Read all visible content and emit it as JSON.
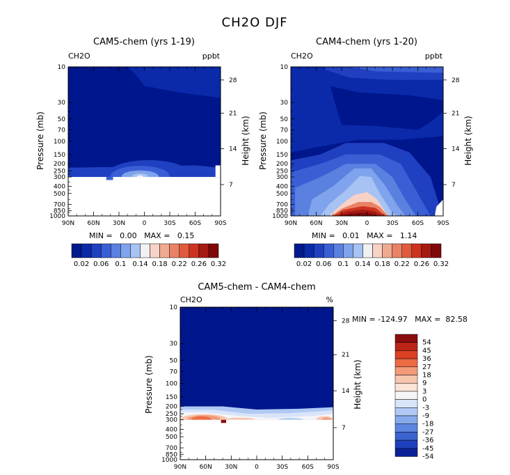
{
  "page_title": "CH2O DJF",
  "chart_data": [
    {
      "type": "heatmap",
      "title": "CAM5-chem (yrs 1-19)",
      "corner_left": "CH2O",
      "corner_right": "ppbt",
      "ylabel": "Pressure (mb)",
      "ylabel_right": "Height (km)",
      "x_ticks": [
        "90N",
        "60N",
        "30N",
        "0",
        "30S",
        "60S",
        "90S"
      ],
      "y_ticks": [
        "10",
        "30",
        "50",
        "70",
        "100",
        "150",
        "200",
        "250",
        "300",
        "400",
        "500",
        "700",
        "850",
        "1000"
      ],
      "y_tick_values": [
        10,
        30,
        50,
        70,
        100,
        150,
        200,
        250,
        300,
        400,
        500,
        700,
        850,
        1000
      ],
      "height_ticks": [
        "28",
        "21",
        "14",
        "7"
      ],
      "height_tick_pressures": [
        15,
        42,
        125,
        380
      ],
      "ylim": [
        10,
        1000
      ],
      "xlim": [
        90,
        -90
      ],
      "stats": "MIN =   0.00   MAX =   0.15",
      "min": 0.0,
      "max": 0.15,
      "colorbar_labels": [
        "0.02",
        "0.06",
        "0.1",
        "0.14",
        "0.18",
        "0.22",
        "0.26",
        "0.32"
      ],
      "colorbar_levels": [
        0.02,
        0.04,
        0.06,
        0.08,
        0.1,
        0.12,
        0.14,
        0.16,
        0.18,
        0.2,
        0.22,
        0.24,
        0.26,
        0.28,
        0.32
      ]
    },
    {
      "type": "heatmap",
      "title": "CAM4-chem (yrs 1-20)",
      "corner_left": "CH2O",
      "corner_right": "ppbt",
      "ylabel": "Pressure (mb)",
      "ylabel_right": "Height (km)",
      "x_ticks": [
        "90N",
        "60N",
        "30N",
        "0",
        "30S",
        "60S",
        "90S"
      ],
      "y_ticks": [
        "10",
        "30",
        "50",
        "70",
        "100",
        "150",
        "200",
        "250",
        "300",
        "400",
        "500",
        "700",
        "850",
        "1000"
      ],
      "y_tick_values": [
        10,
        30,
        50,
        70,
        100,
        150,
        200,
        250,
        300,
        400,
        500,
        700,
        850,
        1000
      ],
      "height_ticks": [
        "28",
        "21",
        "14",
        "7"
      ],
      "height_tick_pressures": [
        15,
        42,
        125,
        380
      ],
      "ylim": [
        10,
        1000
      ],
      "xlim": [
        90,
        -90
      ],
      "stats": "MIN =   0.01   MAX =   1.14",
      "min": 0.01,
      "max": 1.14,
      "colorbar_labels": [
        "0.02",
        "0.06",
        "0.1",
        "0.14",
        "0.18",
        "0.22",
        "0.26",
        "0.32"
      ],
      "colorbar_levels": [
        0.02,
        0.04,
        0.06,
        0.08,
        0.1,
        0.12,
        0.14,
        0.16,
        0.18,
        0.2,
        0.22,
        0.24,
        0.26,
        0.28,
        0.32
      ]
    },
    {
      "type": "heatmap",
      "title": "CAM5-chem - CAM4-chem",
      "corner_left": "CH2O",
      "corner_right": "%",
      "ylabel": "Pressure (mb)",
      "ylabel_right": "Height (km)",
      "x_ticks": [
        "90N",
        "60N",
        "30N",
        "0",
        "30S",
        "60S",
        "90S"
      ],
      "y_ticks": [
        "10",
        "30",
        "50",
        "70",
        "100",
        "150",
        "200",
        "250",
        "300",
        "400",
        "500",
        "700",
        "850",
        "1000"
      ],
      "y_tick_values": [
        10,
        30,
        50,
        70,
        100,
        150,
        200,
        250,
        300,
        400,
        500,
        700,
        850,
        1000
      ],
      "height_ticks": [
        "28",
        "21",
        "14",
        "7"
      ],
      "height_tick_pressures": [
        15,
        42,
        125,
        380
      ],
      "ylim": [
        10,
        1000
      ],
      "xlim": [
        90,
        -90
      ],
      "stats": "MIN = -124.97   MAX =  82.58",
      "min": -124.97,
      "max": 82.58,
      "colorbar_labels": [
        "54",
        "45",
        "36",
        "27",
        "18",
        "9",
        "3",
        "0",
        "-3",
        "-9",
        "-18",
        "-27",
        "-36",
        "-45",
        "-54"
      ],
      "colorbar_levels": [
        54,
        45,
        36,
        27,
        18,
        9,
        3,
        0,
        -3,
        -9,
        -18,
        -27,
        -36,
        -45,
        -54
      ]
    }
  ],
  "colors": {
    "seq": [
      "#001a8c",
      "#0a2aaa",
      "#1f40c0",
      "#3a5ed4",
      "#5a80e0",
      "#7fa3ec",
      "#a6c3f4",
      "#f1f1f3",
      "#f8d2c6",
      "#f1aa92",
      "#ea8266",
      "#e05a3c",
      "#cc3420",
      "#a61a12",
      "#80080a"
    ],
    "div": [
      "#8a0d0d",
      "#bb2418",
      "#dc4022",
      "#ec6b42",
      "#f39a78",
      "#f8c5ad",
      "#fbe4d6",
      "#f5f5f7",
      "#d8e4fa",
      "#b0c9f4",
      "#86aaec",
      "#5c86e0",
      "#3a63d0",
      "#1f40bc",
      "#0b2296"
    ],
    "field": "#00168c"
  }
}
